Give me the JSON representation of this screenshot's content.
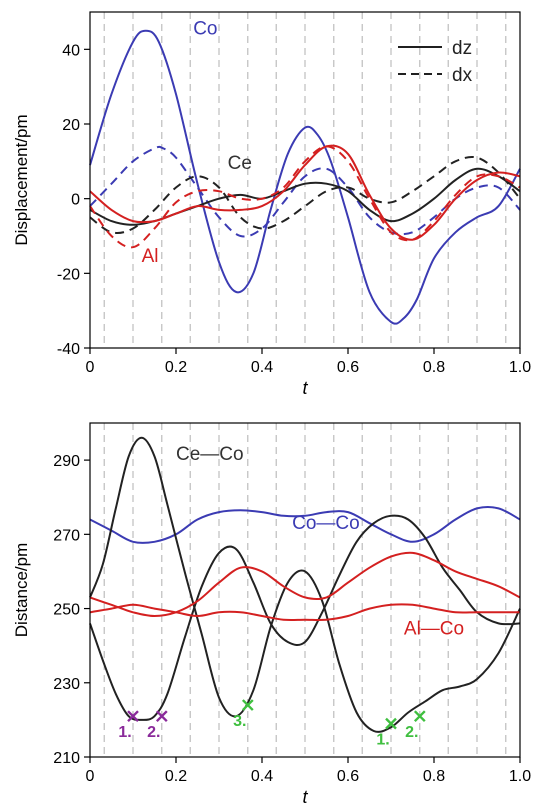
{
  "chart_data": [
    {
      "type": "line",
      "xlabel": "t",
      "ylabel": "Displacement/pm",
      "xlim": [
        0,
        1
      ],
      "ylim": [
        -40,
        50
      ],
      "x_ticks": [
        0,
        0.2,
        0.4,
        0.6,
        0.8,
        1.0
      ],
      "x_tick_labels": [
        "0",
        "0.2",
        "0.4",
        "0.6",
        "0.8",
        "1.0"
      ],
      "y_ticks": [
        -40,
        -20,
        0,
        20,
        40
      ],
      "y_tick_labels": [
        "-40",
        "-20",
        "0",
        "20",
        "40"
      ],
      "vertical_dashed_lines": [
        0.033,
        0.1,
        0.167,
        0.233,
        0.3,
        0.367,
        0.433,
        0.5,
        0.567,
        0.633,
        0.7,
        0.767,
        0.833,
        0.9,
        0.967
      ],
      "legend": {
        "placement": "top-right",
        "entries": [
          {
            "label": "dz",
            "dash": "solid"
          },
          {
            "label": "dx",
            "dash": "dashed"
          }
        ]
      },
      "annotations": [
        {
          "text": "Co",
          "x": 0.24,
          "y": 44,
          "color": "#3b3bb3"
        },
        {
          "text": "Ce",
          "x": 0.32,
          "y": 8,
          "color": "#333333"
        },
        {
          "text": "Al",
          "x": 0.12,
          "y": -17,
          "color": "#d42020"
        }
      ],
      "series": [
        {
          "color": "#3b3bb3",
          "dash": "solid",
          "x": [
            0,
            0.05,
            0.1,
            0.13,
            0.16,
            0.2,
            0.25,
            0.3,
            0.34,
            0.38,
            0.42,
            0.46,
            0.5,
            0.53,
            0.56,
            0.6,
            0.65,
            0.7,
            0.73,
            0.76,
            0.8,
            0.85,
            0.9,
            0.95,
            1.0
          ],
          "y": [
            9,
            28,
            42,
            45,
            42,
            28,
            4,
            -17,
            -25,
            -20,
            -3,
            12,
            19,
            17,
            10,
            -5,
            -25,
            -33,
            -32,
            -27,
            -16,
            -9,
            -5,
            -2,
            8
          ]
        },
        {
          "color": "#3b3bb3",
          "dash": "dashed",
          "x": [
            0,
            0.05,
            0.1,
            0.15,
            0.17,
            0.2,
            0.25,
            0.3,
            0.35,
            0.4,
            0.45,
            0.5,
            0.55,
            0.6,
            0.65,
            0.7,
            0.75,
            0.8,
            0.85,
            0.9,
            0.95,
            1.0
          ],
          "y": [
            -2,
            4,
            10,
            13.5,
            13.5,
            11,
            3,
            -5,
            -10,
            -8,
            -1,
            6,
            8,
            3,
            -5,
            -9,
            -9,
            -5,
            0,
            3,
            3,
            -3
          ]
        },
        {
          "color": "#222222",
          "dash": "solid",
          "x": [
            0,
            0.05,
            0.1,
            0.15,
            0.2,
            0.25,
            0.3,
            0.35,
            0.4,
            0.45,
            0.5,
            0.55,
            0.6,
            0.65,
            0.7,
            0.75,
            0.8,
            0.85,
            0.9,
            0.95,
            1.0
          ],
          "y": [
            -3,
            -6,
            -7,
            -6,
            -4,
            -2,
            0,
            1,
            0,
            2,
            4,
            4,
            2,
            -3,
            -6,
            -4,
            0,
            5,
            8,
            6,
            2
          ]
        },
        {
          "color": "#222222",
          "dash": "dashed",
          "x": [
            0,
            0.05,
            0.1,
            0.15,
            0.2,
            0.25,
            0.3,
            0.35,
            0.4,
            0.45,
            0.5,
            0.55,
            0.6,
            0.65,
            0.7,
            0.75,
            0.8,
            0.85,
            0.9,
            0.95,
            1.0
          ],
          "y": [
            -5,
            -9,
            -8,
            -3,
            3,
            6,
            3,
            -5,
            -8,
            -6,
            -2,
            2,
            3,
            0,
            -1,
            2,
            6,
            10,
            11,
            7,
            0
          ]
        },
        {
          "color": "#d42020",
          "dash": "solid",
          "x": [
            0,
            0.05,
            0.1,
            0.15,
            0.2,
            0.25,
            0.3,
            0.35,
            0.4,
            0.45,
            0.5,
            0.55,
            0.6,
            0.65,
            0.7,
            0.75,
            0.8,
            0.85,
            0.9,
            0.95,
            1.0
          ],
          "y": [
            2,
            -3,
            -6,
            -6,
            -4,
            -2,
            -3,
            -3,
            -2,
            2,
            9,
            14,
            12,
            1,
            -8,
            -11,
            -7,
            0,
            5,
            7,
            6
          ]
        },
        {
          "color": "#d42020",
          "dash": "dashed",
          "x": [
            0,
            0.05,
            0.1,
            0.15,
            0.2,
            0.25,
            0.3,
            0.35,
            0.4,
            0.45,
            0.5,
            0.55,
            0.6,
            0.65,
            0.7,
            0.75,
            0.8,
            0.85,
            0.9,
            0.95,
            1.0
          ],
          "y": [
            -2,
            -10,
            -13,
            -8,
            -1,
            2,
            2,
            0,
            0,
            3,
            10,
            14,
            10,
            0,
            -9,
            -11,
            -6,
            1,
            6,
            6,
            3
          ]
        }
      ]
    },
    {
      "type": "line",
      "xlabel": "t",
      "ylabel": "Distance/pm",
      "xlim": [
        0,
        1
      ],
      "ylim": [
        210,
        300
      ],
      "x_ticks": [
        0,
        0.2,
        0.4,
        0.6,
        0.8,
        1.0
      ],
      "x_tick_labels": [
        "0",
        "0.2",
        "0.4",
        "0.6",
        "0.8",
        "1.0"
      ],
      "y_ticks": [
        210,
        230,
        250,
        270,
        290
      ],
      "y_tick_labels": [
        "210",
        "230",
        "250",
        "270",
        "290"
      ],
      "vertical_dashed_lines": [
        0.033,
        0.1,
        0.167,
        0.233,
        0.3,
        0.367,
        0.433,
        0.5,
        0.567,
        0.633,
        0.7,
        0.767,
        0.833,
        0.9,
        0.967
      ],
      "annotations": [
        {
          "text": "Ce—Co",
          "x": 0.2,
          "y": 290,
          "color": "#333333"
        },
        {
          "text": "Co—Co",
          "x": 0.47,
          "y": 271.5,
          "color": "#3b3bb3"
        },
        {
          "text": "Al—Co",
          "x": 0.73,
          "y": 243,
          "color": "#d42020"
        }
      ],
      "markers": [
        {
          "x": 0.1,
          "y": 221,
          "label": "1.",
          "color": "#8a2a9a"
        },
        {
          "x": 0.167,
          "y": 221,
          "label": "2.",
          "color": "#8a2a9a"
        },
        {
          "x": 0.367,
          "y": 224,
          "label": "3.",
          "color": "#3fbf3f"
        },
        {
          "x": 0.7,
          "y": 219,
          "label": "1.",
          "color": "#3fbf3f"
        },
        {
          "x": 0.767,
          "y": 221,
          "label": "2.",
          "color": "#3fbf3f"
        }
      ],
      "series": [
        {
          "color": "#3b3bb3",
          "dash": "solid",
          "x": [
            0,
            0.05,
            0.1,
            0.15,
            0.2,
            0.25,
            0.3,
            0.35,
            0.4,
            0.45,
            0.5,
            0.55,
            0.6,
            0.65,
            0.7,
            0.75,
            0.8,
            0.85,
            0.9,
            0.95,
            1.0
          ],
          "y": [
            274,
            271,
            268,
            268,
            270,
            274,
            276,
            276.5,
            276,
            275,
            275,
            276,
            276,
            273,
            270,
            268,
            270,
            274,
            277,
            277,
            274
          ]
        },
        {
          "color": "#222222",
          "dash": "solid",
          "x": [
            0,
            0.03,
            0.06,
            0.09,
            0.12,
            0.15,
            0.18,
            0.22,
            0.26,
            0.3,
            0.34,
            0.38,
            0.42,
            0.46,
            0.5,
            0.54,
            0.58,
            0.62,
            0.66,
            0.7,
            0.74,
            0.78,
            0.82,
            0.86,
            0.9,
            0.95,
            1.0
          ],
          "y": [
            253,
            262,
            277,
            291,
            296,
            291,
            278,
            260,
            243,
            226,
            221,
            228,
            245,
            257,
            260,
            252,
            235,
            222,
            217,
            218,
            222,
            225,
            228,
            229,
            231,
            238,
            250
          ]
        },
        {
          "color": "#222222",
          "dash": "solid",
          "x": [
            0,
            0.03,
            0.06,
            0.09,
            0.12,
            0.15,
            0.18,
            0.22,
            0.26,
            0.3,
            0.34,
            0.38,
            0.42,
            0.46,
            0.5,
            0.54,
            0.58,
            0.62,
            0.66,
            0.7,
            0.74,
            0.78,
            0.82,
            0.86,
            0.9,
            0.95,
            1.0
          ],
          "y": [
            246,
            236,
            227,
            221,
            220,
            221,
            227,
            242,
            256,
            265,
            266,
            257,
            246,
            241,
            241,
            249,
            259,
            268,
            273,
            275,
            274,
            269,
            261,
            255,
            249,
            246,
            246
          ]
        },
        {
          "color": "#d42020",
          "dash": "solid",
          "x": [
            0,
            0.05,
            0.1,
            0.15,
            0.2,
            0.25,
            0.3,
            0.35,
            0.4,
            0.45,
            0.5,
            0.55,
            0.6,
            0.65,
            0.7,
            0.75,
            0.8,
            0.85,
            0.9,
            0.95,
            1.0
          ],
          "y": [
            253,
            251,
            249,
            248,
            249,
            252,
            257,
            261,
            260,
            256,
            253,
            253,
            257,
            261,
            264,
            265,
            263,
            260,
            258,
            256,
            253
          ]
        },
        {
          "color": "#d42020",
          "dash": "solid",
          "x": [
            0,
            0.05,
            0.1,
            0.15,
            0.2,
            0.25,
            0.3,
            0.35,
            0.4,
            0.45,
            0.5,
            0.55,
            0.6,
            0.65,
            0.7,
            0.75,
            0.8,
            0.85,
            0.9,
            0.95,
            1.0
          ],
          "y": [
            249,
            250,
            251,
            250,
            249,
            248,
            249,
            249,
            248,
            247,
            247,
            247,
            248,
            250,
            251,
            251,
            250,
            249,
            249,
            249,
            249
          ]
        }
      ]
    }
  ]
}
